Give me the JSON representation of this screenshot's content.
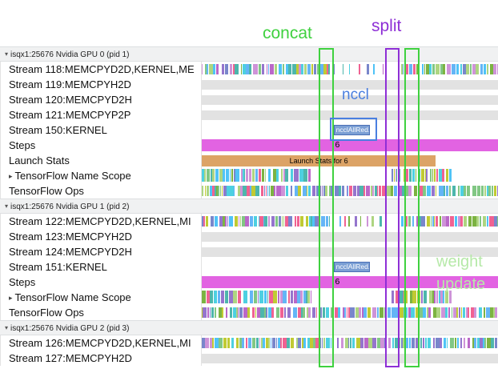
{
  "annotations": {
    "concat": "concat",
    "split": "split",
    "nccl": "nccl",
    "weight_update_line1": "weight",
    "weight_update_line2": "update"
  },
  "colors": {
    "annotation_green": "#3fd13f",
    "annotation_purple": "#8e2fd6",
    "annotation_blue": "#4a7fe0",
    "annotation_weight_green": "#b6e9a8",
    "steps_bar": "#e263e2",
    "launch_bar": "#dca366",
    "nccl_bar": "#7b9fd4",
    "nccl_bar_border": "#4a6fb5",
    "empty_track": "#e2e2e2",
    "header_bg": "#f0f1f2",
    "palette": [
      "#7cb342",
      "#4db6ac",
      "#7986cb",
      "#ba68c8",
      "#64b5f6",
      "#aed581",
      "#4dd0e1",
      "#9575cd",
      "#f06292",
      "#c0ca33",
      "#81c784",
      "#4fc3f7",
      "#ce93d8"
    ]
  },
  "rows": [
    {
      "kind": "header",
      "icon": "triangle-down",
      "label": "isqx1:25676 Nvidia GPU 0 (pid 1)"
    },
    {
      "kind": "track",
      "label": "Stream 118:MEMCPYD2D,KERNEL,ME",
      "pattern": "dense",
      "clusters": [
        {
          "from": 0,
          "to": 43,
          "density": "dense"
        },
        {
          "from": 44,
          "to": 61,
          "density": "sparse"
        },
        {
          "from": 67,
          "to": 100,
          "density": "dense"
        }
      ]
    },
    {
      "kind": "track",
      "label": "Stream 119:MEMCPYH2D",
      "pattern": "empty"
    },
    {
      "kind": "track",
      "label": "Stream 120:MEMCPYD2H",
      "pattern": "empty"
    },
    {
      "kind": "track",
      "label": "Stream 121:MEMCPYP2P",
      "pattern": "empty"
    },
    {
      "kind": "track",
      "label": "Stream 150:KERNEL",
      "pattern": "ncclbar",
      "bar_label": "ncclAllRed..."
    },
    {
      "kind": "track",
      "label": "Steps",
      "pattern": "steps",
      "bar_label": "6"
    },
    {
      "kind": "track",
      "label": "Launch Stats",
      "pattern": "launch",
      "bar_label": "Launch Stats for 6"
    },
    {
      "kind": "track",
      "icon": "triangle-right",
      "label": "TensorFlow Name Scope",
      "pattern": "dense",
      "tall": true,
      "clusters": [
        {
          "from": 0,
          "to": 37,
          "density": "dense"
        },
        {
          "from": 64,
          "to": 84,
          "density": "dense"
        }
      ]
    },
    {
      "kind": "track",
      "label": "TensorFlow Ops",
      "pattern": "dense",
      "clusters": [
        {
          "from": 0,
          "to": 100,
          "density": "dense"
        }
      ]
    },
    {
      "kind": "header",
      "icon": "triangle-down",
      "label": "isqx1:25676 Nvidia GPU 1 (pid 2)"
    },
    {
      "kind": "track",
      "label": "Stream 122:MEMCPYD2D,KERNEL,MI",
      "pattern": "dense",
      "clusters": [
        {
          "from": 0,
          "to": 43,
          "density": "dense"
        },
        {
          "from": 44,
          "to": 61,
          "density": "sparse"
        },
        {
          "from": 67,
          "to": 100,
          "density": "dense"
        }
      ]
    },
    {
      "kind": "track",
      "label": "Stream 123:MEMCPYH2D",
      "pattern": "empty"
    },
    {
      "kind": "track",
      "label": "Stream 124:MEMCPYD2H",
      "pattern": "empty"
    },
    {
      "kind": "track",
      "label": "Stream 151:KERNEL",
      "pattern": "ncclbar",
      "bar_label": "ncclAllRed..."
    },
    {
      "kind": "track",
      "label": "Steps",
      "pattern": "steps",
      "bar_label": "6"
    },
    {
      "kind": "track",
      "icon": "triangle-right",
      "label": "TensorFlow Name Scope",
      "pattern": "dense",
      "tall": true,
      "clusters": [
        {
          "from": 0,
          "to": 37,
          "density": "dense"
        },
        {
          "from": 64,
          "to": 84,
          "density": "dense"
        }
      ]
    },
    {
      "kind": "track",
      "label": "TensorFlow Ops",
      "pattern": "dense",
      "clusters": [
        {
          "from": 0,
          "to": 100,
          "density": "dense"
        }
      ]
    },
    {
      "kind": "header",
      "icon": "triangle-down",
      "label": "isqx1:25676 Nvidia GPU 2 (pid 3)"
    },
    {
      "kind": "track",
      "label": "Stream 126:MEMCPYD2D,KERNEL,MI",
      "pattern": "dense",
      "clusters": [
        {
          "from": 0,
          "to": 100,
          "density": "dense"
        }
      ]
    },
    {
      "kind": "track",
      "label": "Stream 127:MEMCPYH2D",
      "pattern": "empty"
    }
  ]
}
